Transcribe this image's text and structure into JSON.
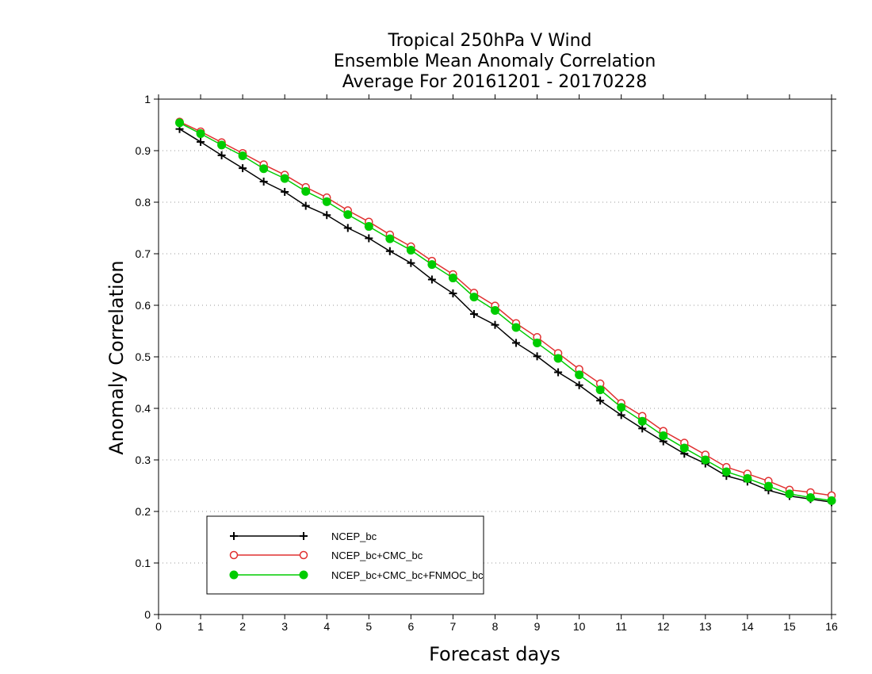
{
  "chart_data": {
    "type": "line",
    "title": [
      "Tropical 250hPa V Wind",
      "Ensemble Mean Anomaly Correlation",
      "Average For 20161201 - 20170228"
    ],
    "xlabel": "Forecast days",
    "ylabel": "Anomaly Correlation",
    "xlim": [
      0,
      16
    ],
    "ylim": [
      0,
      1
    ],
    "xticks": [
      "0",
      "1",
      "2",
      "3",
      "4",
      "5",
      "6",
      "7",
      "8",
      "9",
      "10",
      "11",
      "12",
      "13",
      "14",
      "15",
      "16"
    ],
    "yticks": [
      "0",
      "0.1",
      "0.2",
      "0.3",
      "0.4",
      "0.5",
      "0.6",
      "0.7",
      "0.8",
      "0.9",
      "1"
    ],
    "grid": "horizontal-dotted",
    "legend_position": "bottom-left",
    "x": [
      0.5,
      1,
      1.5,
      2,
      2.5,
      3,
      3.5,
      4,
      4.5,
      5,
      5.5,
      6,
      6.5,
      7,
      7.5,
      8,
      8.5,
      9,
      9.5,
      10,
      10.5,
      11,
      11.5,
      12,
      12.5,
      13,
      13.5,
      14,
      14.5,
      15,
      15.5,
      16
    ],
    "series": [
      {
        "name": "NCEP_bc",
        "color": "#000000",
        "marker": "plus",
        "values": [
          0.942,
          0.917,
          0.891,
          0.866,
          0.84,
          0.82,
          0.793,
          0.775,
          0.75,
          0.73,
          0.705,
          0.682,
          0.65,
          0.623,
          0.583,
          0.562,
          0.527,
          0.501,
          0.47,
          0.445,
          0.415,
          0.387,
          0.361,
          0.336,
          0.312,
          0.293,
          0.269,
          0.258,
          0.241,
          0.23,
          0.224,
          0.218
        ]
      },
      {
        "name": "NCEP_bc+CMC_bc",
        "color": "#e03030",
        "marker": "open-circle",
        "values": [
          0.956,
          0.937,
          0.916,
          0.895,
          0.873,
          0.853,
          0.829,
          0.809,
          0.784,
          0.762,
          0.737,
          0.714,
          0.686,
          0.66,
          0.624,
          0.599,
          0.565,
          0.538,
          0.507,
          0.476,
          0.448,
          0.41,
          0.385,
          0.356,
          0.333,
          0.31,
          0.286,
          0.273,
          0.259,
          0.242,
          0.237,
          0.231
        ]
      },
      {
        "name": "NCEP_bc+CMC_bc+FNMOC_bc",
        "color": "#00cc00",
        "marker": "filled-circle",
        "values": [
          0.954,
          0.933,
          0.911,
          0.89,
          0.865,
          0.846,
          0.821,
          0.801,
          0.776,
          0.753,
          0.729,
          0.707,
          0.679,
          0.653,
          0.616,
          0.59,
          0.557,
          0.527,
          0.497,
          0.465,
          0.436,
          0.402,
          0.375,
          0.347,
          0.323,
          0.3,
          0.277,
          0.264,
          0.249,
          0.234,
          0.227,
          0.221
        ]
      }
    ]
  }
}
